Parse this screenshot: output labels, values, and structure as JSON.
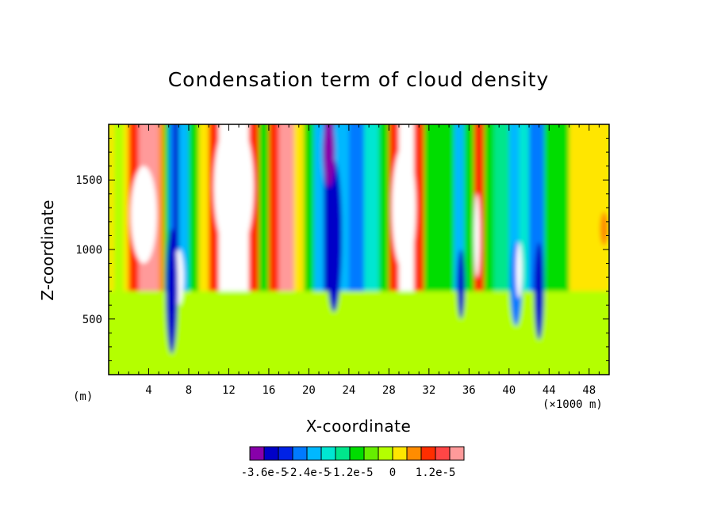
{
  "chart_data": {
    "type": "heatmap",
    "title": "Condensation term of cloud density",
    "xlabel": "X-coordinate",
    "ylabel": "Z-coordinate",
    "x_unit_left": "(m)",
    "x_unit_right": "(×1000 m)",
    "xlim": [
      0,
      50
    ],
    "ylim": [
      100,
      1900
    ],
    "xticks": [
      4,
      8,
      12,
      16,
      20,
      24,
      28,
      32,
      36,
      40,
      44,
      48
    ],
    "yticks": [
      500,
      1000,
      1500
    ],
    "colorbar": {
      "levels": [
        -3.6e-05,
        -3.2e-05,
        -2.8e-05,
        -2.4e-05,
        -2e-05,
        -1.6e-05,
        -1.2e-05,
        -8e-06,
        -4e-06,
        0,
        4e-06,
        8e-06,
        1.2e-05,
        1.6e-05
      ],
      "colors": [
        "#8800aa",
        "#0000c8",
        "#0022e6",
        "#007aff",
        "#00b8ff",
        "#00e6d2",
        "#00e68c",
        "#00dd00",
        "#66ee00",
        "#b4ff00",
        "#ffe600",
        "#ff8c00",
        "#ff2e00",
        "#ff4646",
        "#ff9a9a"
      ],
      "labels": [
        "-3.6e-5",
        "-2.4e-5",
        "-1.2e-5",
        "0",
        "1.2e-5"
      ],
      "label_values": [
        -3.6e-05,
        -2.4e-05,
        -1.2e-05,
        0,
        1.2e-05
      ]
    },
    "background_color": "#b4ff00",
    "bands": [
      {
        "x0": 0.0,
        "x1": 0.5,
        "color": "#ffe600"
      },
      {
        "x0": 0.5,
        "x1": 1.5,
        "color": "#b4ff00"
      },
      {
        "x0": 1.5,
        "x1": 2.0,
        "color": "#ffe600"
      },
      {
        "x0": 2.0,
        "x1": 3.0,
        "color": "#ff2e00"
      },
      {
        "x0": 3.0,
        "x1": 5.0,
        "color": "#ff9a9a"
      },
      {
        "x0": 5.0,
        "x1": 5.5,
        "color": "#ff8c00"
      },
      {
        "x0": 5.5,
        "x1": 6.0,
        "color": "#00dd00"
      },
      {
        "x0": 6.0,
        "x1": 6.5,
        "color": "#007aff"
      },
      {
        "x0": 6.5,
        "x1": 7.0,
        "color": "#0000c8"
      },
      {
        "x0": 7.0,
        "x1": 8.0,
        "color": "#00b8ff"
      },
      {
        "x0": 8.0,
        "x1": 9.0,
        "color": "#00dd00"
      },
      {
        "x0": 9.0,
        "x1": 10.0,
        "color": "#ffe600"
      },
      {
        "x0": 10.0,
        "x1": 11.0,
        "color": "#ff2e00"
      },
      {
        "x0": 11.0,
        "x1": 14.0,
        "color": "#ffffff"
      },
      {
        "x0": 14.0,
        "x1": 15.0,
        "color": "#ff2e00"
      },
      {
        "x0": 15.0,
        "x1": 16.0,
        "color": "#00dd00"
      },
      {
        "x0": 16.0,
        "x1": 17.0,
        "color": "#ff2e00"
      },
      {
        "x0": 17.0,
        "x1": 18.5,
        "color": "#ff9a9a"
      },
      {
        "x0": 18.5,
        "x1": 19.5,
        "color": "#ffe600"
      },
      {
        "x0": 19.5,
        "x1": 20.5,
        "color": "#00dd00"
      },
      {
        "x0": 20.5,
        "x1": 21.5,
        "color": "#00b8ff"
      },
      {
        "x0": 21.5,
        "x1": 22.5,
        "color": "#0000c8"
      },
      {
        "x0": 22.5,
        "x1": 24.0,
        "color": "#00b8ff"
      },
      {
        "x0": 24.0,
        "x1": 25.5,
        "color": "#007aff"
      },
      {
        "x0": 25.5,
        "x1": 27.0,
        "color": "#00e6d2"
      },
      {
        "x0": 27.0,
        "x1": 28.0,
        "color": "#00dd00"
      },
      {
        "x0": 28.0,
        "x1": 29.0,
        "color": "#ff2e00"
      },
      {
        "x0": 29.0,
        "x1": 30.5,
        "color": "#ffffff"
      },
      {
        "x0": 30.5,
        "x1": 31.5,
        "color": "#ff2e00"
      },
      {
        "x0": 31.5,
        "x1": 34.5,
        "color": "#00dd00"
      },
      {
        "x0": 34.5,
        "x1": 35.5,
        "color": "#00b8ff"
      },
      {
        "x0": 35.5,
        "x1": 36.5,
        "color": "#00dd00"
      },
      {
        "x0": 36.5,
        "x1": 37.5,
        "color": "#ff2e00"
      },
      {
        "x0": 37.5,
        "x1": 38.5,
        "color": "#00dd00"
      },
      {
        "x0": 38.5,
        "x1": 40.0,
        "color": "#00e68c"
      },
      {
        "x0": 40.0,
        "x1": 41.0,
        "color": "#00b8ff"
      },
      {
        "x0": 41.0,
        "x1": 42.0,
        "color": "#00e6d2"
      },
      {
        "x0": 42.0,
        "x1": 43.5,
        "color": "#007aff"
      },
      {
        "x0": 43.5,
        "x1": 46.0,
        "color": "#00dd00"
      },
      {
        "x0": 46.0,
        "x1": 50.0,
        "color": "#ffe600"
      }
    ],
    "low_band": {
      "z_top": 700,
      "color": "#b4ff00"
    },
    "hotspots": [
      {
        "x": 3.5,
        "z": 1250,
        "rx": 1.3,
        "rz": 350,
        "color": "#ffffff"
      },
      {
        "x": 12.5,
        "z": 1450,
        "rx": 2.0,
        "rz": 500,
        "color": "#ffffff"
      },
      {
        "x": 29.5,
        "z": 1300,
        "rx": 1.2,
        "rz": 450,
        "color": "#ffffff"
      },
      {
        "x": 7.0,
        "z": 800,
        "rx": 0.5,
        "rz": 200,
        "color": "#ffffff"
      },
      {
        "x": 6.3,
        "z": 700,
        "rx": 0.6,
        "rz": 450,
        "color": "#0000c8"
      },
      {
        "x": 22.5,
        "z": 1100,
        "rx": 0.8,
        "rz": 550,
        "color": "#0000c8"
      },
      {
        "x": 22.0,
        "z": 1700,
        "rx": 0.6,
        "rz": 250,
        "color": "#8800aa"
      },
      {
        "x": 35.2,
        "z": 750,
        "rx": 0.4,
        "rz": 250,
        "color": "#0000c8"
      },
      {
        "x": 40.7,
        "z": 750,
        "rx": 0.6,
        "rz": 300,
        "color": "#007aff"
      },
      {
        "x": 41.0,
        "z": 850,
        "rx": 0.3,
        "rz": 200,
        "color": "#ffffff"
      },
      {
        "x": 43.0,
        "z": 700,
        "rx": 0.5,
        "rz": 350,
        "color": "#0000c8"
      },
      {
        "x": 36.8,
        "z": 1100,
        "rx": 0.3,
        "rz": 300,
        "color": "#ffffff"
      },
      {
        "x": 49.5,
        "z": 1150,
        "rx": 0.4,
        "rz": 120,
        "color": "#ff8c00"
      }
    ]
  }
}
